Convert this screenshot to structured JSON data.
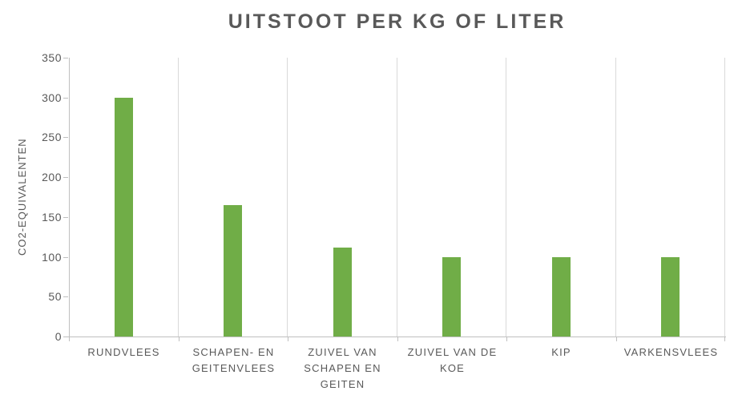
{
  "chart_data": {
    "type": "bar",
    "title": "UITSTOOT PER KG OF LITER",
    "xlabel": "",
    "ylabel": "CO2-EQUIVALENTEN",
    "categories": [
      "RUNDVLEES",
      "SCHAPEN- EN GEITENVLEES",
      "ZUIVEL VAN SCHAPEN EN GEITEN",
      "ZUIVEL VAN DE KOE",
      "KIP",
      "VARKENSVLEES"
    ],
    "values": [
      300,
      165,
      112,
      100,
      100,
      100
    ],
    "ylim": [
      0,
      350
    ],
    "yticks": [
      0,
      50,
      100,
      150,
      200,
      250,
      300,
      350
    ],
    "grid": "vertical-category-separators",
    "legend": "none"
  },
  "colors": {
    "bar": "#70AD47",
    "text": "#595959",
    "gridline": "#D9D9D9",
    "axis_line": "#BFBFBF",
    "background": "#FFFFFF"
  }
}
